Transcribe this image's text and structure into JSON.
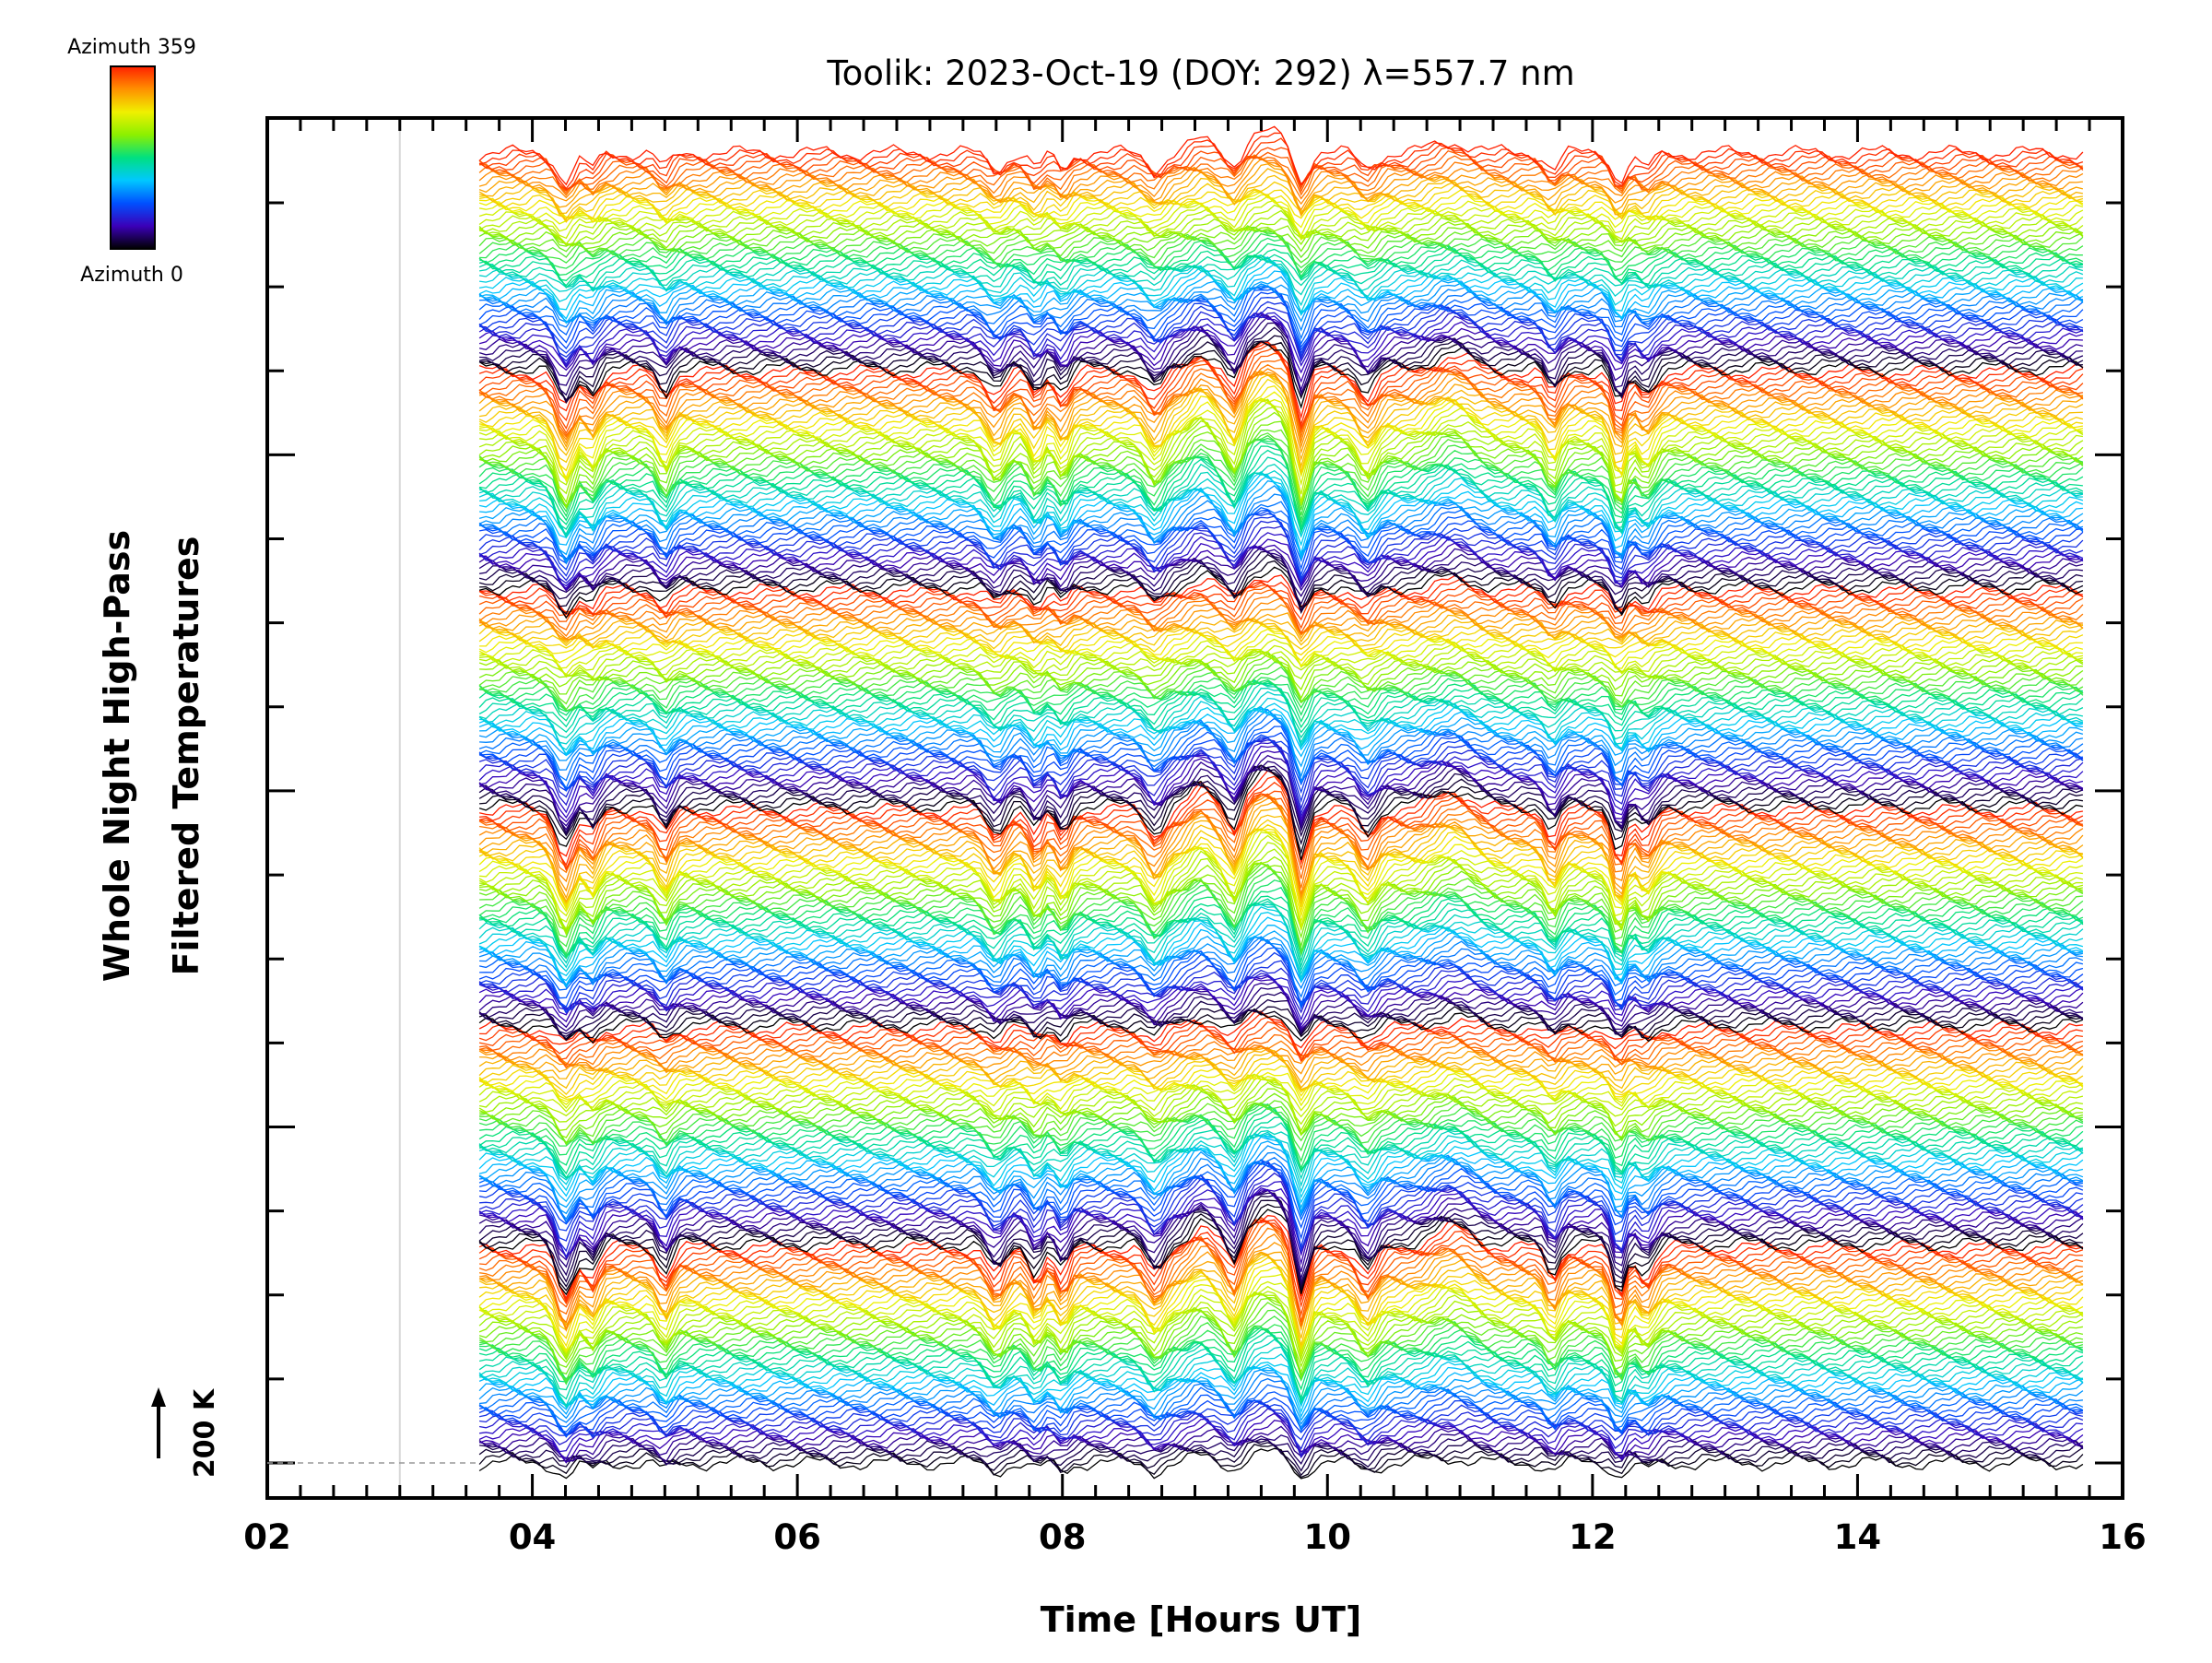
{
  "chart_data": {
    "type": "line",
    "title": "Toolik: 2023-Oct-19 (DOY: 292) λ=557.7 nm",
    "ylabel_line1": "Whole Night High-Pass",
    "ylabel_line2": "Filtered Temperatures",
    "xlabel": "Time [Hours UT]",
    "x_ticks": [
      "02",
      "04",
      "06",
      "08",
      "10",
      "12",
      "14",
      "16"
    ],
    "xlim": [
      2,
      16
    ],
    "data_x_range": [
      3.6,
      15.7
    ],
    "scale_label": "200 K",
    "colorbar": {
      "top_label": "Azimuth 359",
      "bottom_label": "Azimuth 0",
      "colormap": "rainbow",
      "colors": [
        "#000000",
        "#3b00b8",
        "#0050ff",
        "#00c8ff",
        "#00e080",
        "#8cf000",
        "#f0f000",
        "#ff9000",
        "#ff2000"
      ]
    },
    "series_description_values": {
      "n_traces": 360,
      "azimuth_range": [
        0,
        359
      ],
      "dips_hours_ut": [
        4.25,
        4.45,
        5.0,
        7.5,
        7.8,
        8.0,
        8.7,
        9.3,
        9.8,
        10.3,
        11.7,
        12.2,
        12.4
      ]
    }
  }
}
